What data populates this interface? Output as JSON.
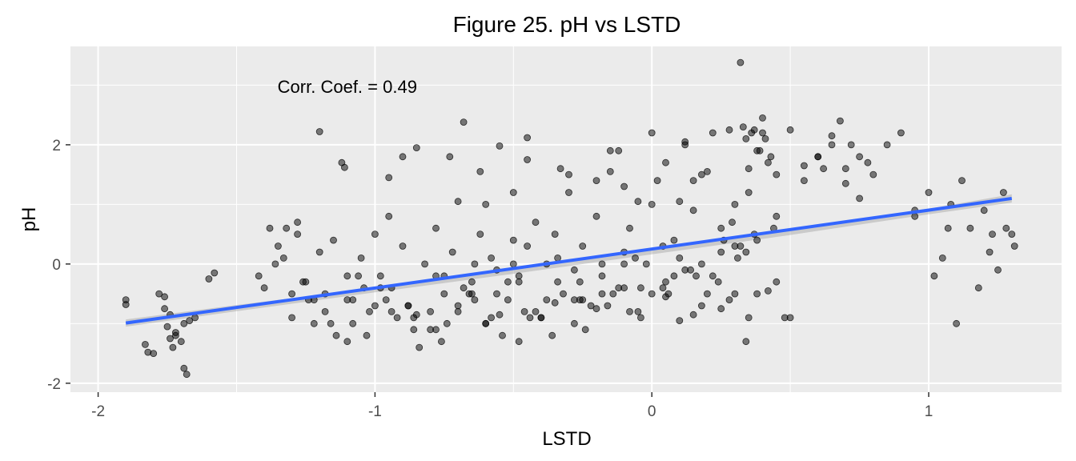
{
  "chart_data": {
    "type": "scatter",
    "title": "Figure 25. pH vs LSTD",
    "xlabel": "LSTD",
    "ylabel": "pH",
    "xlim": [
      -2.1,
      1.48
    ],
    "ylim": [
      -2.15,
      3.65
    ],
    "x_ticks": [
      -2,
      -1,
      0,
      1
    ],
    "y_ticks": [
      -2,
      0,
      2
    ],
    "grid": true,
    "annotation": {
      "text": "Corr. Coef. = 0.49",
      "x": -1.1,
      "y": 2.98
    },
    "colors": {
      "panel": "#ebebeb",
      "grid": "#ffffff",
      "points": "#000000",
      "fit_line": "#3366ff",
      "confidence_band": "#999999"
    },
    "fit": {
      "x": [
        -1.9,
        1.3
      ],
      "y": [
        -0.99,
        1.1
      ]
    },
    "ci": {
      "x": [
        -1.9,
        -1.5,
        -1.0,
        -0.5,
        0.0,
        0.5,
        1.0,
        1.3
      ],
      "upper": [
        -0.93,
        -0.688,
        -0.404,
        -0.096,
        0.238,
        0.573,
        0.927,
        1.17
      ],
      "lower": [
        -1.05,
        -0.792,
        -0.476,
        -0.164,
        0.162,
        0.487,
        0.833,
        1.03
      ]
    },
    "points_x": [
      -1.9,
      -1.9,
      -1.83,
      -1.82,
      -1.8,
      -1.78,
      -1.76,
      -1.75,
      -1.74,
      -1.73,
      -1.72,
      -1.7,
      -1.69,
      -1.68,
      -1.76,
      -1.74,
      -1.72,
      -1.69,
      -1.67,
      -1.65,
      -1.6,
      -1.58,
      -1.4,
      -1.38,
      -1.35,
      -1.33,
      -1.3,
      -1.28,
      -1.25,
      -1.22,
      -1.2,
      -1.18,
      -1.15,
      -1.12,
      -1.11,
      -1.1,
      -1.08,
      -1.05,
      -1.03,
      -1.0,
      -0.98,
      -0.95,
      -0.92,
      -0.9,
      -0.88,
      -0.85,
      -0.82,
      -0.8,
      -0.78,
      -0.75,
      -0.72,
      -0.7,
      -0.68,
      -0.65,
      -0.62,
      -0.6,
      -0.58,
      -0.55,
      -0.52,
      -0.5,
      -0.48,
      -0.45,
      -0.42,
      -0.4,
      -0.38,
      -0.35,
      -0.32,
      -0.3,
      -0.28,
      -0.25,
      -0.22,
      -0.2,
      -0.18,
      -0.15,
      -0.12,
      -0.1,
      -0.08,
      -0.05,
      -0.02,
      0.0,
      0.02,
      0.05,
      0.08,
      0.1,
      0.12,
      0.15,
      0.18,
      0.2,
      0.22,
      0.25,
      0.28,
      0.3,
      0.32,
      0.34,
      0.35,
      0.37,
      0.38,
      0.4,
      0.42,
      0.45,
      0.5,
      0.55,
      0.6,
      0.62,
      0.65,
      0.68,
      0.7,
      0.72,
      0.75,
      0.78,
      0.8,
      0.85,
      0.9,
      0.95,
      1.0,
      1.02,
      1.05,
      1.08,
      1.1,
      1.12,
      1.15,
      1.18,
      1.2,
      1.22,
      1.25,
      1.28,
      1.3,
      1.31,
      -1.42,
      -1.3,
      -1.22,
      -1.1,
      -1.02,
      -0.94,
      -0.86,
      -0.78,
      -0.7,
      -0.64,
      -0.56,
      -0.48,
      -0.4,
      -0.34,
      -0.26,
      -0.18,
      -0.1,
      -0.04,
      0.04,
      0.1,
      0.16,
      0.26,
      0.32,
      0.38,
      0.44,
      -1.36,
      -1.26,
      -1.16,
      -1.06,
      -0.96,
      -0.86,
      -0.76,
      -0.66,
      -0.56,
      -0.46,
      -0.36,
      -0.26,
      -0.16,
      -0.06,
      0.06,
      0.14,
      0.24,
      0.34,
      -1.32,
      -1.24,
      -1.14,
      -1.04,
      -0.94,
      -0.84,
      -0.74,
      -0.64,
      -0.54,
      -0.44,
      -0.34,
      -0.24,
      -0.14,
      -0.04,
      0.08,
      0.18,
      0.28,
      0.38,
      0.48,
      -1.28,
      -1.18,
      -1.08,
      -0.98,
      -0.88,
      -0.78,
      -0.68,
      -0.58,
      -0.48,
      -0.38,
      -0.28,
      -0.18,
      -0.08,
      0.04,
      0.12,
      0.22,
      0.31,
      0.35,
      0.39,
      0.33,
      0.41,
      0.36,
      0.43,
      0.3,
      0.37,
      0.29,
      0.4,
      0.34,
      -0.8,
      -0.73,
      -0.6,
      -0.5,
      -0.45,
      -0.3,
      -0.2,
      -0.15,
      -0.1,
      -0.05,
      0.0,
      0.05,
      0.12,
      0.15,
      0.2,
      0.65,
      0.7,
      0.75,
      0.6,
      0.55,
      -0.9,
      -0.62,
      -0.33,
      -0.12,
      0.25,
      0.45,
      0.95,
      1.07,
      1.23,
      1.27,
      -1.2,
      -0.95,
      -0.7,
      -0.45,
      -0.2,
      0.05,
      0.3,
      0.45,
      0.5,
      -1.0,
      -0.75,
      -0.5,
      -0.25,
      0.0,
      0.15,
      0.25,
      0.35,
      0.42,
      -1.1,
      -0.85,
      -0.6,
      -0.35,
      -0.1,
      0.1,
      0.18,
      -0.55,
      -0.65,
      -0.42,
      -0.28,
      -0.52
    ],
    "points_y": [
      -0.6,
      -0.68,
      -1.35,
      -1.48,
      -1.5,
      -0.5,
      -0.55,
      -1.05,
      -1.25,
      -1.4,
      -1.2,
      -1.3,
      -1.75,
      -1.85,
      -0.75,
      -0.85,
      -1.15,
      -1.0,
      -0.95,
      -0.9,
      -0.25,
      -0.15,
      -0.4,
      0.6,
      0.3,
      0.1,
      -0.5,
      0.7,
      -0.3,
      -1.0,
      0.2,
      -0.8,
      0.4,
      1.7,
      1.62,
      -0.2,
      -0.6,
      0.1,
      -1.2,
      0.5,
      -0.4,
      0.8,
      -0.9,
      0.3,
      -0.7,
      1.95,
      0.0,
      -1.1,
      0.6,
      -0.5,
      0.2,
      -0.8,
      2.38,
      -0.3,
      0.5,
      -1.0,
      0.1,
      1.98,
      -0.6,
      0.4,
      -0.2,
      2.12,
      0.7,
      -0.9,
      0.0,
      0.5,
      -0.5,
      1.2,
      -0.1,
      0.3,
      -0.7,
      0.8,
      0.0,
      1.9,
      -0.4,
      0.2,
      0.6,
      -0.8,
      0.0,
      2.2,
      1.4,
      -0.3,
      0.4,
      1.05,
      2.05,
      0.9,
      1.5,
      -0.5,
      2.2,
      0.6,
      2.25,
      0.3,
      3.38,
      2.1,
      1.6,
      2.25,
      1.9,
      2.2,
      1.7,
      1.5,
      2.25,
      1.4,
      1.8,
      1.6,
      2.0,
      2.4,
      1.6,
      2.0,
      1.8,
      1.7,
      1.5,
      2.0,
      2.2,
      0.8,
      1.2,
      -0.2,
      0.1,
      1.0,
      -1.0,
      1.4,
      0.6,
      -0.4,
      0.9,
      0.2,
      -0.1,
      0.6,
      0.5,
      0.3,
      -0.2,
      -0.9,
      -0.6,
      -1.3,
      -0.8,
      -0.4,
      -1.1,
      -0.2,
      -0.7,
      0.0,
      -0.5,
      -0.3,
      -0.9,
      0.1,
      -0.6,
      -0.2,
      0.0,
      -0.4,
      0.3,
      0.1,
      -0.2,
      0.4,
      0.3,
      -0.5,
      0.6,
      0.0,
      -0.3,
      -1.0,
      -0.2,
      -0.6,
      -0.9,
      -1.3,
      -0.5,
      -0.1,
      -0.8,
      -1.2,
      -0.3,
      -0.7,
      0.1,
      -0.5,
      -0.1,
      -0.3,
      0.2,
      0.6,
      -0.6,
      -1.2,
      -0.4,
      -0.8,
      -1.4,
      -1.0,
      -0.6,
      -1.2,
      -0.9,
      -0.3,
      -1.1,
      -0.5,
      -0.9,
      -0.2,
      0.0,
      -0.6,
      0.4,
      -0.9,
      0.5,
      -0.5,
      -1.0,
      -0.2,
      -0.7,
      -1.1,
      -0.4,
      -0.9,
      -1.3,
      -0.6,
      -1.0,
      -0.5,
      -0.8,
      -0.4,
      -0.1,
      -0.2,
      0.1,
      1.2,
      1.9,
      2.3,
      2.1,
      2.2,
      1.8,
      1.0,
      0.5,
      0.7,
      2.45,
      -1.3,
      -0.8,
      1.8,
      1.0,
      1.2,
      1.75,
      1.5,
      1.4,
      1.55,
      1.3,
      1.05,
      1.0,
      1.7,
      2.0,
      1.4,
      1.55,
      2.15,
      1.35,
      1.1,
      1.8,
      1.65,
      1.8,
      1.55,
      1.6,
      1.9,
      0.2,
      0.8,
      0.9,
      0.6,
      0.5,
      1.2,
      2.22,
      1.45,
      1.05,
      0.3,
      -0.75,
      -0.55,
      -0.5,
      -0.3,
      -0.9,
      -0.7,
      -0.2,
      0.0,
      -0.6,
      -0.5,
      -0.85,
      -0.75,
      -0.9,
      -0.45,
      -0.6,
      -0.85,
      -1.0,
      -0.65,
      -0.4,
      -0.95,
      -0.7,
      -0.85,
      -0.5,
      -0.8,
      -0.6,
      -0.3,
      -1.05,
      -0.55,
      -0.75,
      -0.65,
      -0.85
    ]
  }
}
